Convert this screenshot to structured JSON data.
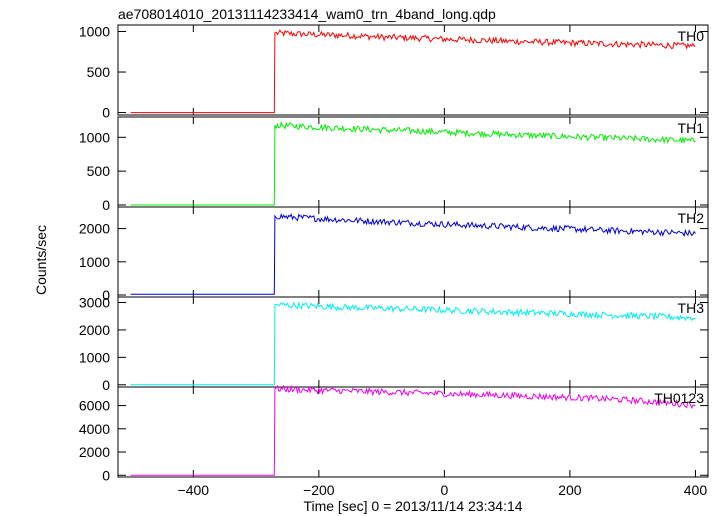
{
  "chart_data": {
    "type": "line",
    "title": "ae708014010_20131114233414_wam0_trn_4band_long.qdp",
    "xlabel": "Time [sec] 0 = 2013/11/14 23:34:14",
    "ylabel": "Counts/sec",
    "xlim": [
      -520,
      420
    ],
    "x_ticks": [
      -400,
      -200,
      0,
      200,
      400
    ],
    "x_tick_labels": [
      "−400",
      "−200",
      "0",
      "200",
      "400"
    ],
    "grid": false,
    "panels": [
      {
        "name": "TH0",
        "color": "#ff0000",
        "ylim": [
          -30,
          1080
        ],
        "y_ticks": [
          0,
          500,
          1000
        ],
        "y_tick_labels": [
          "0",
          "500",
          "1000"
        ],
        "x": [
          -500,
          -271,
          -270,
          -250,
          -200,
          -150,
          -100,
          -50,
          0,
          50,
          100,
          150,
          200,
          250,
          300,
          350,
          400
        ],
        "y": [
          0,
          0,
          980,
          975,
          960,
          950,
          930,
          920,
          905,
          895,
          880,
          870,
          860,
          850,
          840,
          830,
          820
        ]
      },
      {
        "name": "TH1",
        "color": "#00ee00",
        "ylim": [
          -30,
          1300
        ],
        "y_ticks": [
          0,
          500,
          1000
        ],
        "y_tick_labels": [
          "0",
          "500",
          "1000"
        ],
        "x": [
          -500,
          -271,
          -270,
          -250,
          -200,
          -150,
          -100,
          -50,
          0,
          50,
          100,
          150,
          200,
          250,
          300,
          350,
          400
        ],
        "y": [
          0,
          0,
          1180,
          1170,
          1150,
          1130,
          1110,
          1095,
          1075,
          1060,
          1040,
          1025,
          1010,
          995,
          980,
          965,
          945
        ]
      },
      {
        "name": "TH2",
        "color": "#0000dd",
        "ylim": [
          -60,
          2650
        ],
        "y_ticks": [
          0,
          1000,
          2000
        ],
        "y_tick_labels": [
          "0",
          "1000",
          "2000"
        ],
        "x": [
          -500,
          -271,
          -270,
          -250,
          -200,
          -150,
          -100,
          -50,
          0,
          50,
          100,
          150,
          200,
          250,
          300,
          350,
          400
        ],
        "y": [
          20,
          20,
          2380,
          2350,
          2300,
          2250,
          2210,
          2170,
          2130,
          2090,
          2060,
          2020,
          1990,
          1950,
          1920,
          1890,
          1850
        ]
      },
      {
        "name": "TH3",
        "color": "#00eeee",
        "ylim": [
          -80,
          3200
        ],
        "y_ticks": [
          0,
          1000,
          2000,
          3000
        ],
        "y_tick_labels": [
          "0",
          "1000",
          "2000",
          "3000"
        ],
        "x": [
          -500,
          -271,
          -270,
          -250,
          -200,
          -150,
          -100,
          -50,
          0,
          50,
          100,
          150,
          200,
          250,
          300,
          350,
          400
        ],
        "y": [
          0,
          0,
          2920,
          2900,
          2860,
          2820,
          2790,
          2760,
          2720,
          2690,
          2650,
          2620,
          2590,
          2550,
          2520,
          2480,
          2440
        ]
      },
      {
        "name": "TH0123",
        "color": "#ee00ee",
        "ylim": [
          -150,
          7600
        ],
        "y_ticks": [
          0,
          2000,
          4000,
          6000
        ],
        "y_tick_labels": [
          "0",
          "2000",
          "4000",
          "6000"
        ],
        "x": [
          -500,
          -271,
          -270,
          -250,
          -200,
          -150,
          -100,
          -50,
          0,
          50,
          100,
          150,
          200,
          250,
          300,
          350,
          400
        ],
        "y": [
          0,
          0,
          7450,
          7400,
          7320,
          7250,
          7180,
          7100,
          7020,
          6950,
          6870,
          6790,
          6700,
          6600,
          6450,
          6250,
          6050
        ]
      }
    ]
  }
}
